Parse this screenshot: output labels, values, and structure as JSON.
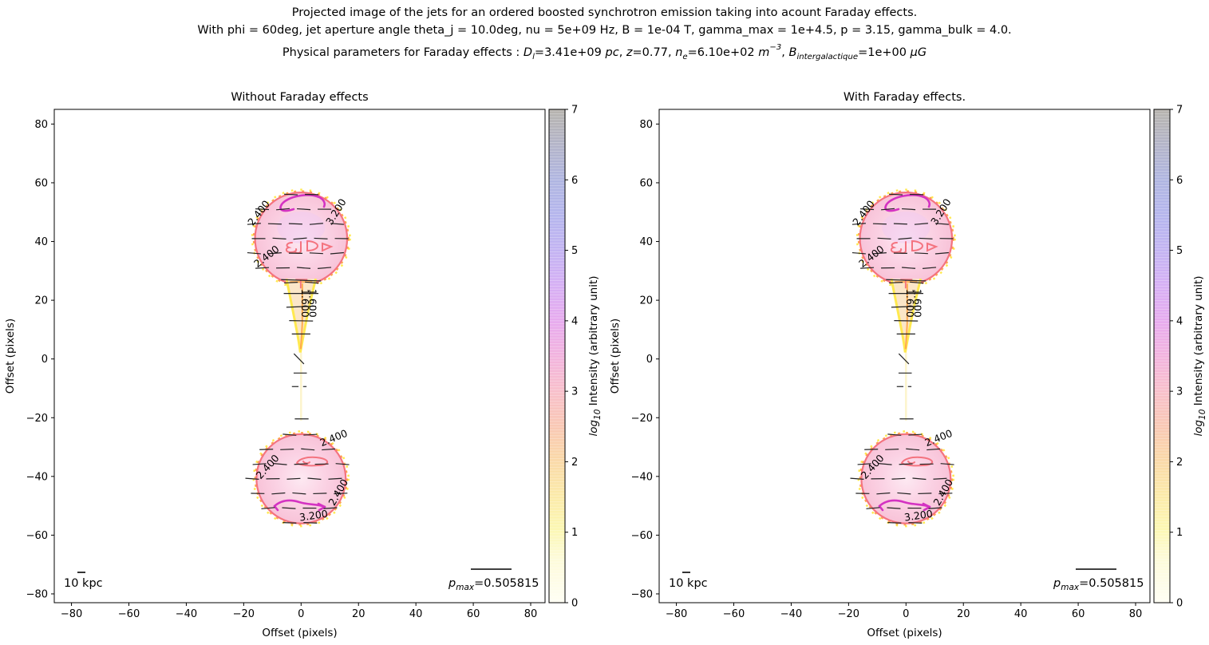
{
  "header": {
    "line1": "Projected image of the jets for an ordered boosted synchrotron emission taking into acount Faraday effects.",
    "line2": "With phi = 60deg, jet aperture angle theta_j = 10.0deg, nu = 5e+09 Hz, B = 1e-04 T, gamma_max = 1e+4.5, p = 3.15, gamma_bulk = 4.0.",
    "line3_tokens": [
      {
        "t": "Physical parameters for Faraday effects : "
      },
      {
        "t": "D",
        "style": "i"
      },
      {
        "t": "l",
        "style": "i sub"
      },
      {
        "t": "=3.41e+09 "
      },
      {
        "t": "pc",
        "style": "i"
      },
      {
        "t": ", "
      },
      {
        "t": "z",
        "style": "i"
      },
      {
        "t": "=0.77, "
      },
      {
        "t": "n",
        "style": "i"
      },
      {
        "t": "e",
        "style": "i sub"
      },
      {
        "t": "=6.10e+02 "
      },
      {
        "t": "m",
        "style": "i"
      },
      {
        "t": "−3",
        "style": "i sup"
      },
      {
        "t": ", "
      },
      {
        "t": "B",
        "style": "i"
      },
      {
        "t": "intergalactique",
        "style": "i sub"
      },
      {
        "t": "=1e+00 "
      },
      {
        "t": "μG",
        "style": "i"
      }
    ]
  },
  "chart_data": {
    "type": "contour",
    "description": "Two-panel projected synchrotron jet intensity maps (log10 scale) with polarization vector field, labeled intensity contours, twin radio lobes at offset ~+41 and ~-41 pixels and a conical jet between them.",
    "panels": [
      {
        "title": "Without Faraday effects",
        "xlabel": "Offset (pixels)",
        "ylabel": "Offset (pixels)",
        "xticks": [
          -80,
          -60,
          -40,
          -20,
          0,
          20,
          40,
          60,
          80
        ],
        "yticks": [
          -80,
          -60,
          -40,
          -20,
          0,
          20,
          40,
          60,
          80
        ],
        "xlim": [
          -86,
          85
        ],
        "ylim": [
          -83,
          85
        ],
        "scalebar_label": "10 kpc",
        "pmax_tokens": [
          {
            "t": "p",
            "style": "i"
          },
          {
            "t": "max",
            "style": "i sub"
          },
          {
            "t": "=0.505815"
          }
        ],
        "colorbar": {
          "ticks": [
            0,
            1,
            2,
            3,
            4,
            5,
            6,
            7
          ],
          "lim": [
            0,
            7
          ],
          "label_tokens": [
            {
              "t": "log",
              "style": "i"
            },
            {
              "t": "10",
              "style": "i sub"
            },
            {
              "t": " Intensity (arbitrary unit)"
            }
          ]
        }
      },
      {
        "title": "With Faraday effects.",
        "xlabel": "Offset (pixels)",
        "ylabel": "Offset (pixels)",
        "xticks": [
          -80,
          -60,
          -40,
          -20,
          0,
          20,
          40,
          60,
          80
        ],
        "yticks": [
          -80,
          -60,
          -40,
          -20,
          0,
          20,
          40,
          60,
          80
        ],
        "xlim": [
          -86,
          85
        ],
        "ylim": [
          -83,
          85
        ],
        "scalebar_label": "10 kpc",
        "pmax_tokens": [
          {
            "t": "p",
            "style": "i"
          },
          {
            "t": "max",
            "style": "i sub"
          },
          {
            "t": "=0.505815"
          }
        ],
        "colorbar": {
          "ticks": [
            0,
            1,
            2,
            3,
            4,
            5,
            6,
            7
          ],
          "lim": [
            0,
            7
          ],
          "label_tokens": [
            {
              "t": "log",
              "style": "i"
            },
            {
              "t": "10",
              "style": "i sub"
            },
            {
              "t": " Intensity (arbitrary unit)"
            }
          ]
        }
      }
    ],
    "contour_levels": [
      1.6,
      2.4,
      3.2
    ],
    "lobes": [
      {
        "center_offset": [
          0,
          41.0
        ],
        "radius_offset": 15.7
      },
      {
        "center_offset": [
          0,
          -40.8
        ],
        "radius_offset": 15.2
      }
    ],
    "jet": {
      "base_offset": 27.3,
      "tip_offset": 2.2,
      "half_width_offset": 5.0
    },
    "contour_label_placements": [
      {
        "text": "2.400",
        "x": -13.8,
        "y": 49.0,
        "rot": -52,
        "color": "contour_orange",
        "lobe": "upper"
      },
      {
        "text": "3.200",
        "x": 13.2,
        "y": 49.5,
        "rot": -58,
        "color": "contour_salmon",
        "lobe": "upper"
      },
      {
        "text": "2.400",
        "x": -11.3,
        "y": 34.0,
        "rot": -38,
        "color": "contour_salmon",
        "lobe": "upper"
      },
      {
        "text": "1.600",
        "x": 0.2,
        "y": 19.0,
        "rot": 90,
        "color": "contour_orange_dark",
        "lobe": "jet"
      },
      {
        "text": "1.600",
        "x": 2.9,
        "y": 19.0,
        "rot": 90,
        "color": "contour_orange",
        "lobe": "jet"
      },
      {
        "text": "2.400",
        "x": 11.8,
        "y": -28.0,
        "rot": -22,
        "color": "contour_orange",
        "lobe": "lower"
      },
      {
        "text": "2.400",
        "x": -10.8,
        "y": -37.5,
        "rot": -48,
        "color": "contour_salmon",
        "lobe": "lower"
      },
      {
        "text": "2.400",
        "x": 14.0,
        "y": -46.0,
        "rot": -60,
        "color": "contour_orange",
        "lobe": "lower"
      },
      {
        "text": "3.200",
        "x": 4.5,
        "y": -54.5,
        "rot": -8,
        "color": "contour_pink",
        "lobe": "lower"
      }
    ],
    "isolated_vectors": [
      [
        -2.5,
        1.8,
        1.0,
        -1.7
      ],
      [
        -2.6,
        -4.8,
        2.0,
        -4.8
      ],
      [
        -3.2,
        -9.4,
        -0.9,
        -9.4
      ],
      [
        0.7,
        -9.4,
        1.9,
        -9.4
      ],
      [
        -2.2,
        -20.4,
        2.6,
        -20.4
      ]
    ],
    "jet_bars_offsets": [
      [
        26.8,
        2
      ],
      [
        22.3,
        0
      ],
      [
        17.8,
        -2
      ],
      [
        13.0,
        1
      ],
      [
        8.5,
        0
      ]
    ],
    "vector_row_spacing_offset": 5,
    "colormap_stops": [
      [
        0.0,
        "#fffef4"
      ],
      [
        0.09,
        "#fdfbd9"
      ],
      [
        0.15,
        "#fcf7b2"
      ],
      [
        0.22,
        "#fbe9a8"
      ],
      [
        0.29,
        "#fad8a7"
      ],
      [
        0.36,
        "#f9c7b4"
      ],
      [
        0.43,
        "#f8bfcb"
      ],
      [
        0.5,
        "#f2b3de"
      ],
      [
        0.57,
        "#e7aaee"
      ],
      [
        0.645,
        "#d5aff4"
      ],
      [
        0.715,
        "#c2b3f2"
      ],
      [
        0.785,
        "#b4b5ed"
      ],
      [
        0.855,
        "#afb5e1"
      ],
      [
        0.925,
        "#b2b3c9"
      ],
      [
        1.0,
        "#b6b3ad"
      ]
    ],
    "colors": {
      "contour_yellow": "#ffe94f",
      "contour_orange": "#ffa94e",
      "contour_orange_dark": "#e08a3c",
      "contour_salmon": "#f4737f",
      "contour_magenta": "#d433c2",
      "contour_pink": "#ee5fa4",
      "vector": "#222222",
      "lobe_fill": "#fbd2e4",
      "lobe_fill_light": "#fde9f2",
      "lobe_tint": "#f0c9f2",
      "jet_fill": "#fbe6c8",
      "jet_trail": "#fcf3c4"
    }
  }
}
